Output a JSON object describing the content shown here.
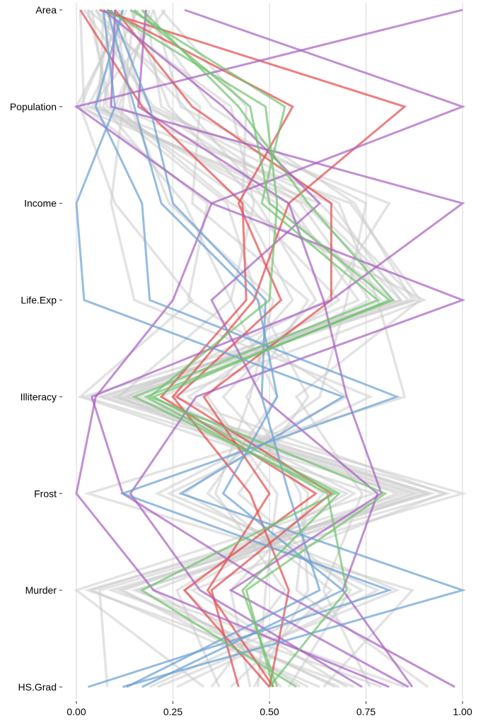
{
  "chart_data": {
    "type": "line",
    "subtype": "parallel-coordinates (rotated, variables on vertical axis, scaled value 0-1 on horizontal axis)",
    "variables": [
      "Area",
      "Population",
      "Income",
      "Life.Exp",
      "Illiteracy",
      "Frost",
      "Murder",
      "HS.Grad"
    ],
    "xlim": [
      0,
      1
    ],
    "x_ticks": [
      0,
      0.25,
      0.5,
      0.75,
      1
    ],
    "x_tick_labels": [
      "0.00",
      "0.25",
      "0.50",
      "0.75",
      "1.00"
    ],
    "grid": "vertical lines at x ticks",
    "group_colors": {
      "background": "#cccccc",
      "red": "#e34a4a",
      "purple": "#a75fc0",
      "blue": "#6a9fd1",
      "green": "#70c26e"
    },
    "series": [
      {
        "group": "red",
        "values": [
          0.01,
          0.17,
          0.43,
          0.44,
          0.22,
          0.62,
          0.28,
          0.5
        ]
      },
      {
        "group": "red",
        "values": [
          0.08,
          0.56,
          0.42,
          0.53,
          0.26,
          0.66,
          0.35,
          0.42
        ]
      },
      {
        "group": "red",
        "values": [
          0.06,
          0.85,
          0.55,
          0.46,
          0.25,
          0.45,
          0.55,
          0.5
        ]
      },
      {
        "group": "red",
        "values": [
          0.1,
          0.3,
          0.66,
          0.66,
          0.33,
          0.5,
          0.34,
          0.51
        ]
      },
      {
        "group": "purple",
        "values": [
          0.28,
          1.0,
          0.35,
          0.25,
          0.05,
          0.0,
          0.2,
          0.81
        ]
      },
      {
        "group": "purple",
        "values": [
          0.1,
          0.09,
          1.0,
          0.66,
          0.04,
          0.12,
          0.52,
          0.98
        ]
      },
      {
        "group": "purple",
        "values": [
          1.0,
          0.0,
          0.35,
          1.0,
          0.31,
          0.14,
          0.32,
          0.74
        ]
      },
      {
        "group": "purple",
        "values": [
          0.07,
          0.38,
          0.63,
          0.35,
          0.48,
          0.78,
          0.69,
          0.87
        ]
      },
      {
        "group": "purple",
        "values": [
          0.18,
          0.16,
          0.55,
          0.64,
          0.7,
          0.79,
          0.4,
          0.86
        ]
      },
      {
        "group": "blue",
        "values": [
          0.07,
          0.1,
          0.0,
          0.02,
          0.69,
          0.27,
          1.0,
          0.12
        ]
      },
      {
        "group": "blue",
        "values": [
          0.12,
          0.05,
          0.17,
          0.19,
          0.83,
          0.12,
          0.81,
          0.03
        ]
      },
      {
        "group": "blue",
        "values": [
          0.08,
          0.15,
          0.22,
          0.47,
          0.52,
          0.38,
          0.69,
          0.17
        ]
      },
      {
        "group": "blue",
        "values": [
          0.09,
          0.19,
          0.25,
          0.49,
          0.48,
          0.55,
          0.63,
          0.13
        ]
      },
      {
        "group": "green",
        "values": [
          0.08,
          0.49,
          0.52,
          0.5,
          0.19,
          0.8,
          0.44,
          0.51
        ]
      },
      {
        "group": "green",
        "values": [
          0.14,
          0.54,
          0.48,
          0.78,
          0.15,
          0.67,
          0.17,
          0.57
        ]
      },
      {
        "group": "green",
        "values": [
          0.15,
          0.45,
          0.5,
          0.81,
          0.2,
          0.68,
          0.43,
          0.52
        ]
      },
      {
        "group": "green",
        "values": [
          0.17,
          0.42,
          0.6,
          0.82,
          0.18,
          0.65,
          0.7,
          0.5
        ]
      },
      {
        "group": "background",
        "values": [
          0.05,
          0.28,
          0.5,
          0.82,
          0.1,
          0.88,
          0.12,
          0.6
        ]
      },
      {
        "group": "background",
        "values": [
          0.12,
          0.01,
          0.1,
          0.3,
          0.01,
          0.77,
          0.0,
          0.33
        ]
      },
      {
        "group": "background",
        "values": [
          0.2,
          0.1,
          0.4,
          0.9,
          0.25,
          0.95,
          0.3,
          0.7
        ]
      },
      {
        "group": "background",
        "values": [
          0.02,
          0.2,
          0.68,
          0.78,
          0.85,
          0.03,
          0.87,
          0.64
        ]
      },
      {
        "group": "background",
        "values": [
          0.18,
          0.22,
          0.6,
          0.86,
          0.07,
          0.92,
          0.06,
          0.08
        ]
      },
      {
        "group": "background",
        "values": [
          0.09,
          0.05,
          0.55,
          0.73,
          0.14,
          0.83,
          0.2,
          0.58
        ]
      },
      {
        "group": "background",
        "values": [
          0.03,
          0.32,
          0.3,
          0.6,
          0.44,
          0.58,
          0.6,
          0.46
        ]
      },
      {
        "group": "background",
        "values": [
          0.15,
          0.12,
          0.09,
          0.15,
          0.76,
          0.24,
          0.83,
          0.21
        ]
      },
      {
        "group": "background",
        "values": [
          0.23,
          0.04,
          0.71,
          0.89,
          0.57,
          0.74,
          0.64,
          0.76
        ]
      },
      {
        "group": "background",
        "values": [
          0.06,
          0.4,
          0.46,
          0.4,
          0.11,
          0.7,
          0.26,
          0.37
        ]
      },
      {
        "group": "background",
        "values": [
          0.11,
          0.17,
          0.81,
          0.65,
          0.13,
          1.0,
          0.15,
          0.85
        ]
      },
      {
        "group": "background",
        "values": [
          0.04,
          0.08,
          0.39,
          0.47,
          0.6,
          0.42,
          0.71,
          0.55
        ]
      },
      {
        "group": "background",
        "values": [
          0.16,
          0.03,
          0.59,
          0.84,
          0.09,
          0.96,
          0.09,
          0.79
        ]
      },
      {
        "group": "background",
        "values": [
          0.2,
          0.27,
          0.75,
          0.7,
          0.63,
          0.28,
          0.74,
          0.19
        ]
      },
      {
        "group": "background",
        "values": [
          0.13,
          0.0,
          0.63,
          0.88,
          0.06,
          0.87,
          0.11,
          0.68
        ]
      },
      {
        "group": "background",
        "values": [
          0.1,
          0.14,
          0.24,
          0.51,
          0.45,
          0.36,
          0.54,
          0.35
        ]
      },
      {
        "group": "background",
        "values": [
          0.07,
          0.06,
          0.52,
          0.79,
          0.16,
          0.91,
          0.03,
          0.72
        ]
      },
      {
        "group": "background",
        "values": [
          0.22,
          0.44,
          0.43,
          0.56,
          0.34,
          0.52,
          0.49,
          0.47
        ]
      },
      {
        "group": "background",
        "values": [
          0.01,
          0.02,
          0.34,
          0.29,
          0.7,
          0.21,
          0.78,
          0.26
        ]
      },
      {
        "group": "background",
        "values": [
          0.19,
          0.11,
          0.66,
          0.84,
          0.02,
          0.85,
          0.04,
          0.63
        ]
      },
      {
        "group": "background",
        "values": [
          0.14,
          0.24,
          0.47,
          0.62,
          0.38,
          0.6,
          0.57,
          0.91
        ]
      },
      {
        "group": "background",
        "values": [
          0.05,
          0.19,
          0.58,
          0.76,
          0.22,
          0.72,
          0.28,
          0.53
        ]
      },
      {
        "group": "background",
        "values": [
          0.12,
          0.07,
          0.28,
          0.4,
          0.52,
          0.34,
          0.66,
          0.4
        ]
      },
      {
        "group": "background",
        "values": [
          0.17,
          0.35,
          0.72,
          0.87,
          0.12,
          0.9,
          0.16,
          0.67
        ]
      },
      {
        "group": "background",
        "values": [
          0.03,
          0.09,
          0.44,
          0.68,
          0.29,
          0.64,
          0.4,
          0.45
        ]
      }
    ]
  }
}
